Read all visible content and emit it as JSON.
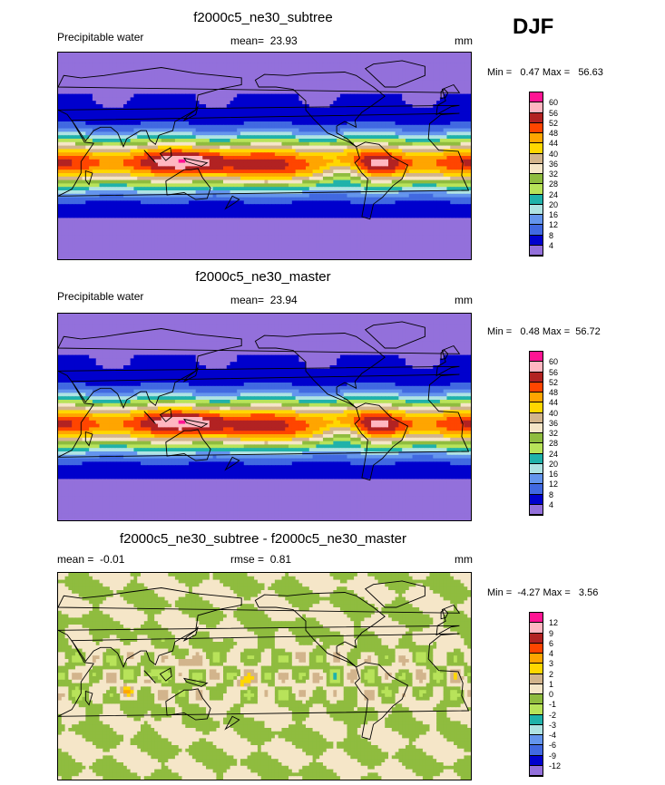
{
  "season": "DJF",
  "chart_data": [
    {
      "type": "heatmap",
      "title": "f2000c5_ne30_subtree",
      "variable": "Precipitable water",
      "stat_label": "mean=",
      "stat_value": "23.93",
      "units": "mm",
      "min_label": "Min =",
      "min_value": "0.47",
      "max_label": "Max =",
      "max_value": "56.63",
      "levels": [
        "60",
        "56",
        "52",
        "48",
        "44",
        "40",
        "36",
        "32",
        "28",
        "24",
        "20",
        "16",
        "12",
        "8",
        "4"
      ],
      "colors": [
        "#ff1493",
        "#ffb6c1",
        "#b22222",
        "#ff4500",
        "#ffa500",
        "#ffd700",
        "#d2b48c",
        "#f5e6c8",
        "#8fbc3f",
        "#b8e35a",
        "#20b2aa",
        "#afe3e3",
        "#6495ed",
        "#4169e1",
        "#0000cd",
        "#9370db"
      ],
      "range": [
        0,
        60
      ],
      "kind": "full"
    },
    {
      "type": "heatmap",
      "title": "f2000c5_ne30_master",
      "variable": "Precipitable water",
      "stat_label": "mean=",
      "stat_value": "23.94",
      "units": "mm",
      "min_label": "Min =",
      "min_value": "0.48",
      "max_label": "Max =",
      "max_value": "56.72",
      "levels": [
        "60",
        "56",
        "52",
        "48",
        "44",
        "40",
        "36",
        "32",
        "28",
        "24",
        "20",
        "16",
        "12",
        "8",
        "4"
      ],
      "colors": [
        "#ff1493",
        "#ffb6c1",
        "#b22222",
        "#ff4500",
        "#ffa500",
        "#ffd700",
        "#d2b48c",
        "#f5e6c8",
        "#8fbc3f",
        "#b8e35a",
        "#20b2aa",
        "#afe3e3",
        "#6495ed",
        "#4169e1",
        "#0000cd",
        "#9370db"
      ],
      "range": [
        0,
        60
      ],
      "kind": "full"
    },
    {
      "type": "heatmap",
      "title": "f2000c5_ne30_subtree - f2000c5_ne30_master",
      "variable": "",
      "stat_label": "mean =",
      "stat_value": "-0.01",
      "stat2_label": "rmse =",
      "stat2_value": "0.81",
      "units": "mm",
      "min_label": "Min =",
      "min_value": "-4.27",
      "max_label": "Max =",
      "max_value": "3.56",
      "levels": [
        "12",
        "9",
        "6",
        "4",
        "3",
        "2",
        "1",
        "0",
        "-1",
        "-2",
        "-3",
        "-4",
        "-6",
        "-9",
        "-12"
      ],
      "colors": [
        "#ff1493",
        "#ffb6c1",
        "#b22222",
        "#ff4500",
        "#ffa500",
        "#ffd700",
        "#d2b48c",
        "#f5e6c8",
        "#8fbc3f",
        "#b8e35a",
        "#20b2aa",
        "#afe3e3",
        "#6495ed",
        "#4169e1",
        "#0000cd",
        "#9370db"
      ],
      "range": [
        -12,
        12
      ],
      "kind": "diff"
    }
  ]
}
